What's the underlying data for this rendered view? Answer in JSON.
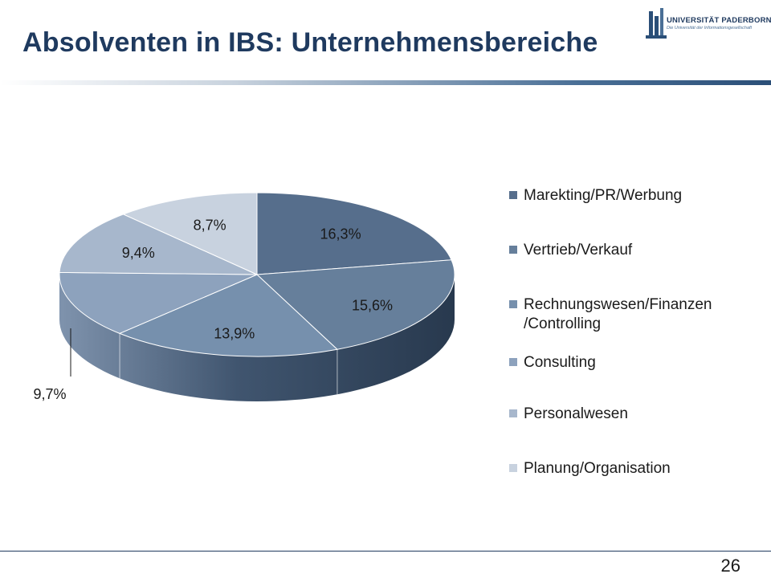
{
  "slide": {
    "title": "Absolventen  in IBS: Unternehmensbereiche",
    "page_number": "26"
  },
  "logo": {
    "name": "UNIVERSITÄT PADERBORN",
    "tagline": "Die Universität der Informationsgesellschaft"
  },
  "chart_data": {
    "type": "pie",
    "title": "",
    "is_3d": true,
    "legend_position": "right",
    "categories": [
      "Marekting/PR/Werbung",
      "Vertrieb/Verkauf",
      "Rechnungswesen/Finanzen /Controlling",
      "Consulting",
      "Personalwesen",
      "Planung/Organisation"
    ],
    "values": [
      16.3,
      15.6,
      13.9,
      9.7,
      9.4,
      8.7
    ],
    "value_labels": [
      "16,3%",
      "15,6%",
      "13,9%",
      "9,7%",
      "9,4%",
      "8,7%"
    ],
    "colors": [
      "#566e8c",
      "#667f9b",
      "#7690ad",
      "#8da2bd",
      "#a7b7cc",
      "#c8d2df"
    ]
  }
}
